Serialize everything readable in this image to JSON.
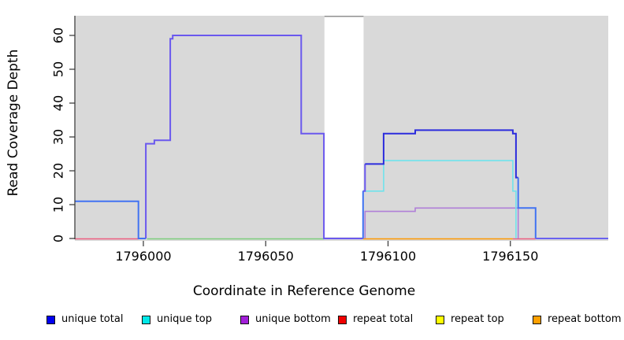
{
  "figure": {
    "x_axis_title": "Coordinate in Reference Genome",
    "y_axis_title": "Read Coverage Depth"
  },
  "chart_data": {
    "type": "line",
    "subtype": "step-coverage-plot",
    "title": "",
    "xlabel": "Coordinate in Reference Genome",
    "ylabel": "Read Coverage Depth",
    "x_range": [
      1795972,
      1796190
    ],
    "y_range": [
      0,
      65
    ],
    "x_ticks": [
      1796000,
      1796050,
      1796100,
      1796150
    ],
    "y_ticks": [
      0,
      10,
      20,
      30,
      40,
      50,
      60
    ],
    "grid": false,
    "plot_background": "#d9d9d9",
    "masked_region": {
      "x_start": 1796074,
      "x_end": 1796090,
      "fill": "#ffffff",
      "top_border": "#8f8f8f"
    },
    "series": [
      {
        "name": "unique total",
        "legend_fill": "#0000f0",
        "line_width": 2,
        "segments": [
          {
            "color": "#4273f2",
            "points": [
              [
                1795972,
                11
              ],
              [
                1795998,
                11
              ],
              [
                1795998,
                0
              ],
              [
                1796001,
                0
              ]
            ]
          },
          {
            "color": "#6a58ee",
            "points": [
              [
                1796001,
                0
              ],
              [
                1796001,
                28
              ],
              [
                1796004.5,
                28
              ],
              [
                1796004.5,
                29
              ],
              [
                1796011,
                29
              ],
              [
                1796011,
                59
              ],
              [
                1796012,
                59
              ],
              [
                1796012,
                60
              ],
              [
                1796064.5,
                60
              ],
              [
                1796064.5,
                31
              ],
              [
                1796073.8,
                31
              ],
              [
                1796073.8,
                0
              ],
              [
                1796089.8,
                0
              ]
            ]
          },
          {
            "color": "#4273f2",
            "points": [
              [
                1796089.8,
                0
              ],
              [
                1796089.8,
                14
              ]
            ]
          },
          {
            "color": "#6a58ee",
            "points": [
              [
                1796089.8,
                14
              ],
              [
                1796090.6,
                14
              ],
              [
                1796090.6,
                22
              ]
            ]
          },
          {
            "color": "#2c2cdd",
            "points": [
              [
                1796090.6,
                22
              ],
              [
                1796098.2,
                22
              ],
              [
                1796098.2,
                31
              ],
              [
                1796111.1,
                31
              ],
              [
                1796111.1,
                32
              ],
              [
                1796151,
                32
              ],
              [
                1796151,
                31
              ],
              [
                1796152.3,
                31
              ],
              [
                1796152.3,
                18
              ],
              [
                1796153.2,
                18
              ]
            ]
          },
          {
            "color": "#4273f2",
            "points": [
              [
                1796153.2,
                18
              ],
              [
                1796153.2,
                9
              ],
              [
                1796160.3,
                9
              ],
              [
                1796160.3,
                0
              ]
            ]
          },
          {
            "color": "#6a62f0",
            "points": [
              [
                1796160.3,
                0
              ],
              [
                1796190,
                0
              ]
            ]
          }
        ]
      },
      {
        "name": "unique top",
        "legend_fill": "#00e8e8",
        "line_width": 1.6,
        "segments": [
          {
            "color": "#6fe3ec",
            "points": [
              [
                1796089.8,
                0
              ],
              [
                1796089.8,
                14
              ],
              [
                1796098.2,
                14
              ],
              [
                1796098.2,
                23
              ],
              [
                1796151,
                23
              ],
              [
                1796151,
                14
              ],
              [
                1796152.3,
                14
              ],
              [
                1796152.3,
                0
              ]
            ]
          }
        ]
      },
      {
        "name": "unique bottom",
        "legend_fill": "#a21fd9",
        "line_width": 1.6,
        "segments": [
          {
            "color": "#b07fd8",
            "points": [
              [
                1796090.6,
                0
              ],
              [
                1796090.6,
                8
              ],
              [
                1796111.1,
                8
              ],
              [
                1796111.1,
                9
              ],
              [
                1796153.2,
                9
              ],
              [
                1796153.2,
                0
              ]
            ]
          }
        ]
      },
      {
        "name": "repeat total",
        "legend_fill": "#f00000",
        "line_width": 1.6,
        "segments": [],
        "value": 0
      },
      {
        "name": "repeat top",
        "legend_fill": "#ffff00",
        "line_width": 1.6,
        "segments": [],
        "value": 0
      },
      {
        "name": "repeat bottom",
        "legend_fill": "#ffa000",
        "line_width": 1.6,
        "segments": [],
        "value": 0
      }
    ],
    "baseline_segments": [
      {
        "color": "#ed5d80",
        "x": [
          1795972,
          1795998
        ]
      },
      {
        "color": "#7cce7c",
        "x": [
          1796001.5,
          1796073.8
        ]
      },
      {
        "color": "#ff9800",
        "x": [
          1796089.8,
          1796151
        ]
      },
      {
        "color": "#ed5d80",
        "x": [
          1796151,
          1796160.3
        ]
      }
    ],
    "legend": {
      "position": "bottom",
      "items": [
        {
          "label": "unique total",
          "fill": "#0000f0"
        },
        {
          "label": "unique top",
          "fill": "#00e8e8"
        },
        {
          "label": "unique bottom",
          "fill": "#a21fd9"
        },
        {
          "label": "repeat total",
          "fill": "#f00000"
        },
        {
          "label": "repeat top",
          "fill": "#ffff00"
        },
        {
          "label": "repeat bottom",
          "fill": "#ffa000"
        }
      ]
    }
  }
}
